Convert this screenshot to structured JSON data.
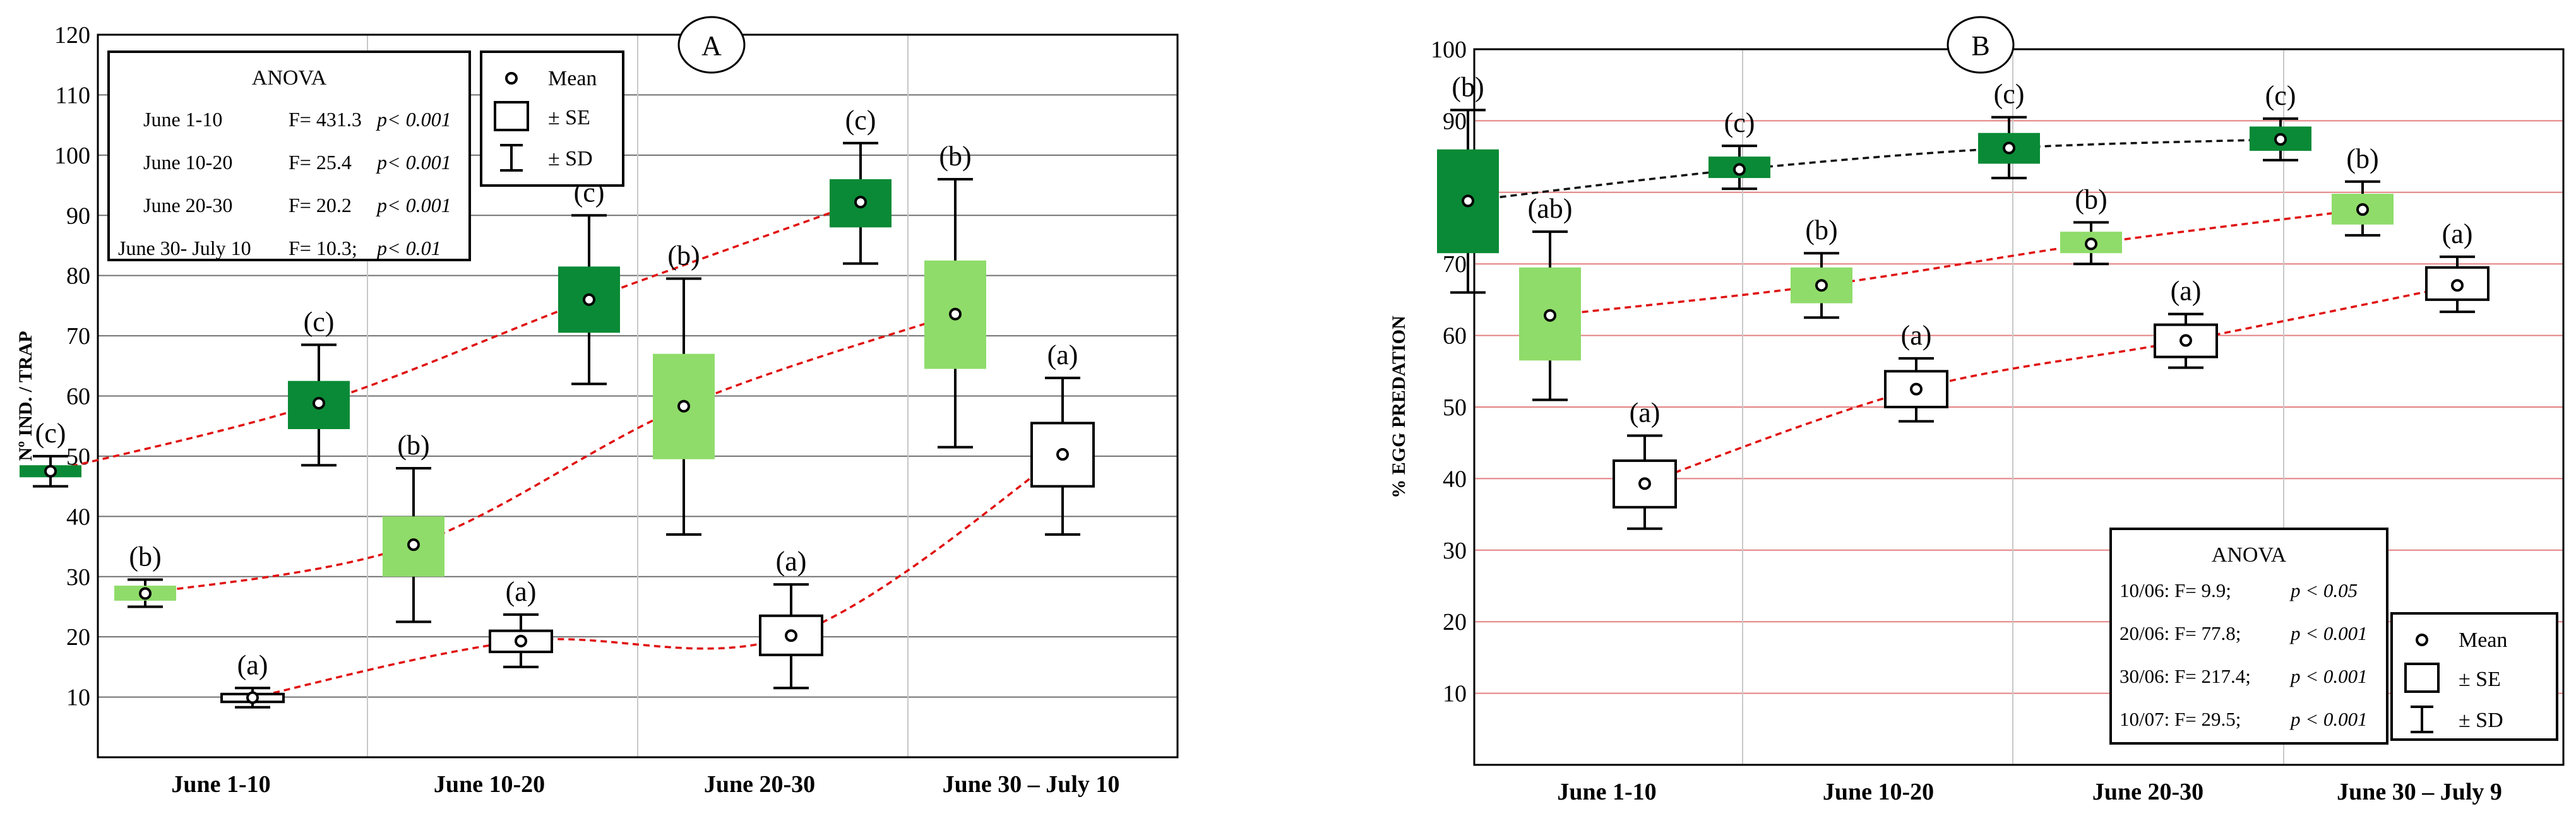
{
  "chart_data": [
    {
      "panel": "A",
      "type": "box",
      "ylabel": "Nº IND. / TRAP",
      "ylim": [
        0,
        120
      ],
      "yticks": [
        10,
        20,
        30,
        40,
        50,
        60,
        70,
        80,
        90,
        100,
        110,
        120
      ],
      "categories": [
        "June 1-10",
        "June 10-20",
        "June 20-30",
        "June 30 – July 10"
      ],
      "series": [
        {
          "color": "#0a8a36",
          "boxes": [
            {
              "mean": 47.5,
              "se": [
                46.5,
                48.5
              ],
              "sd": [
                45.0,
                50.0
              ],
              "letter": "(c)"
            },
            {
              "mean": 58.8,
              "se": [
                54.5,
                62.5
              ],
              "sd": [
                48.5,
                68.5
              ],
              "letter": "(c)"
            },
            {
              "mean": 76.0,
              "se": [
                70.5,
                81.5
              ],
              "sd": [
                62.0,
                90.0
              ],
              "letter": "(c)"
            },
            {
              "mean": 92.2,
              "se": [
                88.0,
                96.0
              ],
              "sd": [
                82.0,
                102.0
              ],
              "letter": "(c)"
            }
          ]
        },
        {
          "color": "#8fdc6a",
          "boxes": [
            {
              "mean": 27.2,
              "se": [
                26.0,
                28.5
              ],
              "sd": [
                25.0,
                29.5
              ],
              "letter": "(b)"
            },
            {
              "mean": 35.3,
              "se": [
                30.0,
                40.0
              ],
              "sd": [
                22.5,
                48.0
              ],
              "letter": "(b)"
            },
            {
              "mean": 58.3,
              "se": [
                49.5,
                67.0
              ],
              "sd": [
                37.0,
                79.5
              ],
              "letter": "(b)"
            },
            {
              "mean": 73.6,
              "se": [
                64.5,
                82.5
              ],
              "sd": [
                51.5,
                96.0
              ],
              "letter": "(b)"
            }
          ]
        },
        {
          "color": "#ffffff",
          "boxes": [
            {
              "mean": 9.9,
              "se": [
                9.2,
                10.5
              ],
              "sd": [
                8.3,
                11.5
              ],
              "letter": "(a)"
            },
            {
              "mean": 19.3,
              "se": [
                17.5,
                21.0
              ],
              "sd": [
                15.0,
                23.7
              ],
              "letter": "(a)"
            },
            {
              "mean": 20.2,
              "se": [
                17.0,
                23.5
              ],
              "sd": [
                11.5,
                28.7
              ],
              "letter": "(a)"
            },
            {
              "mean": 50.3,
              "se": [
                45.0,
                55.5
              ],
              "sd": [
                37.0,
                63.0
              ],
              "letter": "(a)"
            }
          ]
        }
      ],
      "anova": {
        "title": "ANOVA",
        "rows": [
          {
            "label": "June 1-10",
            "f": "F= 431.3",
            "p": "p< 0.001"
          },
          {
            "label": "June 10-20",
            "f": "F= 25.4",
            "p": "p< 0.001"
          },
          {
            "label": "June 20-30",
            "f": "F= 20.2",
            "p": "p< 0.001"
          },
          {
            "label": "June 30- July 10",
            "f": "F= 10.3;",
            "p": "p< 0.01"
          }
        ]
      },
      "legend": {
        "mean": "Mean",
        "se": "± SE",
        "sd": "± SD",
        "placement": "top-left"
      }
    },
    {
      "panel": "B",
      "type": "box",
      "ylabel": "% EGG PREDATION",
      "ylim": [
        0,
        100
      ],
      "yticks": [
        10,
        20,
        30,
        40,
        50,
        60,
        70,
        80,
        90,
        100
      ],
      "categories": [
        "June 1-10",
        "June 10-20",
        "June 20-30",
        "June 30 – July 9"
      ],
      "series": [
        {
          "color": "#0a8a36",
          "boxes": [
            {
              "mean": 78.8,
              "se": [
                71.5,
                86.0
              ],
              "sd": [
                66.0,
                91.5
              ],
              "letter": "(b)"
            },
            {
              "mean": 83.2,
              "se": [
                82.0,
                85.0
              ],
              "sd": [
                80.5,
                86.5
              ],
              "letter": "(c)"
            },
            {
              "mean": 86.2,
              "se": [
                84.0,
                88.3
              ],
              "sd": [
                82.0,
                90.5
              ],
              "letter": "(c)"
            },
            {
              "mean": 87.4,
              "se": [
                85.8,
                89.2
              ],
              "sd": [
                84.5,
                90.3
              ],
              "letter": "(c)"
            }
          ]
        },
        {
          "color": "#8fdc6a",
          "boxes": [
            {
              "mean": 62.8,
              "se": [
                56.5,
                69.5
              ],
              "sd": [
                51.0,
                74.5
              ],
              "letter": "(ab)"
            },
            {
              "mean": 67.0,
              "se": [
                64.5,
                69.5
              ],
              "sd": [
                62.5,
                71.5
              ],
              "letter": "(b)"
            },
            {
              "mean": 72.8,
              "se": [
                71.5,
                74.5
              ],
              "sd": [
                70.0,
                75.8
              ],
              "letter": "(b)"
            },
            {
              "mean": 77.6,
              "se": [
                75.5,
                79.8
              ],
              "sd": [
                74.0,
                81.5
              ],
              "letter": "(b)"
            }
          ]
        },
        {
          "color": "#ffffff",
          "boxes": [
            {
              "mean": 39.3,
              "se": [
                36.0,
                42.5
              ],
              "sd": [
                33.0,
                46.0
              ],
              "letter": "(a)"
            },
            {
              "mean": 52.5,
              "se": [
                50.0,
                55.0
              ],
              "sd": [
                48.0,
                56.8
              ],
              "letter": "(a)"
            },
            {
              "mean": 59.3,
              "se": [
                57.0,
                61.5
              ],
              "sd": [
                55.5,
                63.0
              ],
              "letter": "(a)"
            },
            {
              "mean": 67.0,
              "se": [
                65.0,
                69.5
              ],
              "sd": [
                63.3,
                71.0
              ],
              "letter": "(a)"
            }
          ]
        }
      ],
      "anova": {
        "title": "ANOVA",
        "rows": [
          {
            "label": "10/06: F= 9.9;",
            "p": "p < 0.05"
          },
          {
            "label": "20/06: F= 77.8;",
            "p": "p < 0.001"
          },
          {
            "label": "30/06: F= 217.4;",
            "p": "p < 0.001"
          },
          {
            "label": "10/07: F= 29.5;",
            "p": "p < 0.001"
          }
        ]
      },
      "legend": {
        "mean": "Mean",
        "se": "± SE",
        "sd": "± SD",
        "placement": "bottom-right"
      }
    }
  ]
}
